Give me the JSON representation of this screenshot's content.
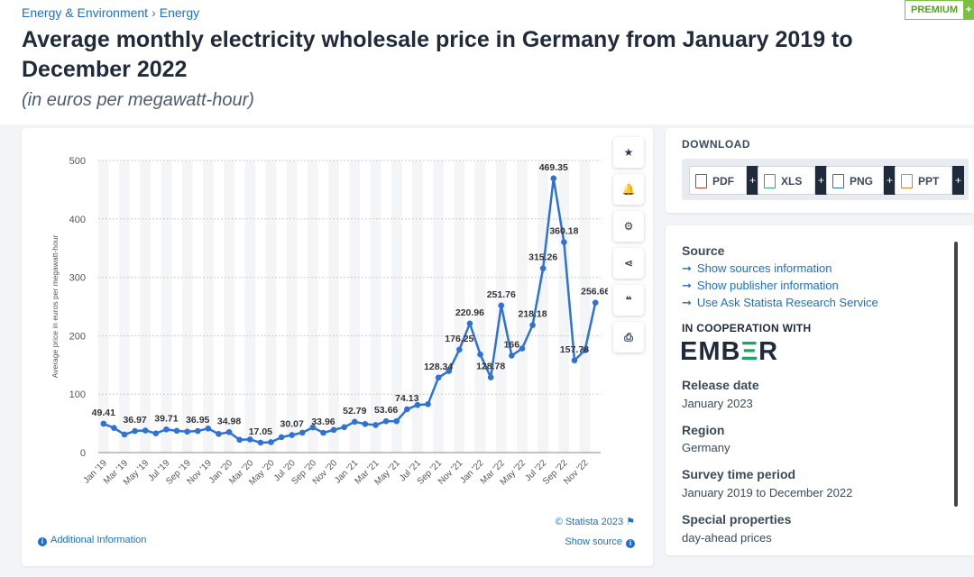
{
  "breadcrumb": {
    "items": [
      "Energy & Environment",
      "Energy"
    ],
    "separator": "›"
  },
  "premium": {
    "label": "PREMIUM",
    "plus": "+"
  },
  "title": "Average monthly electricity wholesale price in Germany from January 2019 to December 2022",
  "subtitle": "(in euros per megawatt-hour)",
  "tools": [
    {
      "name": "star-icon",
      "glyph": "★"
    },
    {
      "name": "bell-icon",
      "glyph": "🔔"
    },
    {
      "name": "gear-icon",
      "glyph": "⚙"
    },
    {
      "name": "share-icon",
      "glyph": "⋖"
    },
    {
      "name": "quote-icon",
      "glyph": "❝"
    },
    {
      "name": "print-icon",
      "glyph": "⎙"
    }
  ],
  "chart_footer": {
    "credit": "© Statista 2023",
    "additional_info": "Additional Information",
    "show_source": "Show source"
  },
  "download": {
    "title": "DOWNLOAD",
    "formats": [
      "PDF",
      "XLS",
      "PNG",
      "PPT"
    ],
    "plus": "+"
  },
  "info": {
    "source_title": "Source",
    "links": [
      "Show sources information",
      "Show publisher information",
      "Use Ask Statista Research Service"
    ],
    "coop_title": "IN COOPERATION WITH",
    "coop_logo_text": "EMBER",
    "release_title": "Release date",
    "release_value": "January 2023",
    "region_title": "Region",
    "region_value": "Germany",
    "period_title": "Survey time period",
    "period_value": "January 2019 to December 2022",
    "special_title": "Special properties",
    "special_value": "day-ahead prices"
  },
  "colors": {
    "line": "#2f72d6",
    "link": "#1f6fc8",
    "ember_green": "#1fa463"
  },
  "chart_data": {
    "type": "line",
    "ylabel": "Average price in euros per megawatt-hour",
    "ylim": [
      0,
      500
    ],
    "yticks": [
      0,
      100,
      200,
      300,
      400,
      500
    ],
    "xtick_labels": [
      "Jan '19",
      "Mar '19",
      "May '19",
      "Jul '19",
      "Sep '19",
      "Nov '19",
      "Jan '20",
      "Mar '20",
      "May '20",
      "Jul '20",
      "Sep '20",
      "Nov '20",
      "Jan '21",
      "Mar '21",
      "May '21",
      "Jul '21",
      "Sep '21",
      "Nov '21",
      "Jan '22",
      "Mar '22",
      "May '22",
      "Jul '22",
      "Sep '22",
      "Nov '22"
    ],
    "categories": [
      "Jan '19",
      "Feb '19",
      "Mar '19",
      "Apr '19",
      "May '19",
      "Jun '19",
      "Jul '19",
      "Aug '19",
      "Sep '19",
      "Oct '19",
      "Nov '19",
      "Dec '19",
      "Jan '20",
      "Feb '20",
      "Mar '20",
      "Apr '20",
      "May '20",
      "Jun '20",
      "Jul '20",
      "Aug '20",
      "Sep '20",
      "Oct '20",
      "Nov '20",
      "Dec '20",
      "Jan '21",
      "Feb '21",
      "Mar '21",
      "Apr '21",
      "May '21",
      "Jun '21",
      "Jul '21",
      "Aug '21",
      "Sep '21",
      "Oct '21",
      "Nov '21",
      "Dec '21",
      "Jan '22",
      "Feb '22",
      "Mar '22",
      "Apr '22",
      "May '22",
      "Jun '22",
      "Jul '22",
      "Aug '22",
      "Sep '22",
      "Oct '22",
      "Nov '22",
      "Dec '22"
    ],
    "values": [
      49.41,
      42.1,
      30.9,
      36.97,
      37.8,
      32.9,
      39.71,
      37.3,
      35.9,
      36.95,
      41.2,
      31.9,
      34.98,
      21.9,
      22.5,
      17.05,
      17.8,
      26.3,
      30.07,
      34.1,
      43.1,
      33.96,
      38.8,
      43.5,
      52.79,
      48.9,
      47.2,
      53.66,
      53.8,
      74.13,
      81.5,
      82.8,
      128.34,
      139.5,
      176.25,
      220.96,
      167.9,
      128.78,
      251.76,
      166,
      178.2,
      218.18,
      315.26,
      469.35,
      360.18,
      157.78,
      175.3,
      256.66
    ],
    "data_labels": [
      {
        "index": 0,
        "text": "49.41"
      },
      {
        "index": 3,
        "text": "36.97"
      },
      {
        "index": 6,
        "text": "39.71"
      },
      {
        "index": 9,
        "text": "36.95"
      },
      {
        "index": 12,
        "text": "34.98"
      },
      {
        "index": 15,
        "text": "17.05"
      },
      {
        "index": 18,
        "text": "30.07"
      },
      {
        "index": 21,
        "text": "33.96"
      },
      {
        "index": 24,
        "text": "52.79"
      },
      {
        "index": 27,
        "text": "53.66"
      },
      {
        "index": 29,
        "text": "74.13"
      },
      {
        "index": 32,
        "text": "128.34"
      },
      {
        "index": 34,
        "text": "176.25"
      },
      {
        "index": 35,
        "text": "220.96"
      },
      {
        "index": 37,
        "text": "128.78"
      },
      {
        "index": 38,
        "text": "251.76"
      },
      {
        "index": 39,
        "text": "166"
      },
      {
        "index": 41,
        "text": "218.18"
      },
      {
        "index": 42,
        "text": "315.26"
      },
      {
        "index": 43,
        "text": "469.35"
      },
      {
        "index": 44,
        "text": "360.18"
      },
      {
        "index": 45,
        "text": "157.78"
      },
      {
        "index": 47,
        "text": "256.66"
      }
    ],
    "grid": true
  }
}
